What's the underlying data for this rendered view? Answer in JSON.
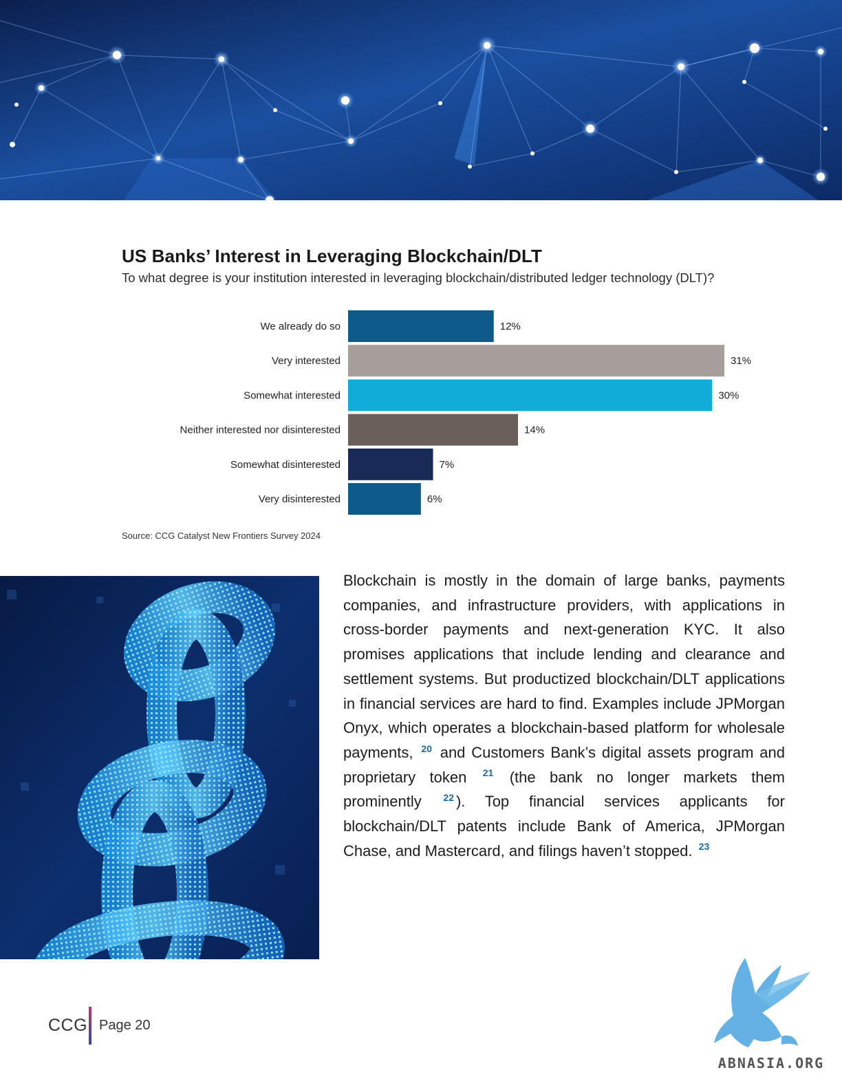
{
  "chart_data": {
    "type": "bar",
    "orientation": "horizontal",
    "title": "US Banks’ Interest in Leveraging Blockchain/DLT",
    "subtitle": "To what degree is your institution interested in leveraging blockchain/distributed ledger technology (DLT)?",
    "categories": [
      "We already do so",
      "Very interested",
      "Somewhat interested",
      "Neither interested nor disinterested",
      "Somewhat disinterested",
      "Very disinterested"
    ],
    "values": [
      12,
      31,
      30,
      14,
      7,
      6
    ],
    "data_labels": [
      "12%",
      "31%",
      "30%",
      "14%",
      "7%",
      "6%"
    ],
    "colors": [
      "#0e5a8a",
      "#a59e9b",
      "#11acd8",
      "#6b5f59",
      "#1a2a57",
      "#0e5a8a"
    ],
    "xlim": [
      0,
      31
    ],
    "grid": false,
    "legend": "none",
    "source": "Source: CCG Catalyst New Frontiers Survey 2024"
  },
  "body": {
    "seg1": "Blockchain is mostly in the domain of large banks, payments companies, and infrastructure providers, with applications in cross-border payments and next-generation KYC. It also promises applications that include lending and clearance and settlement systems. But productized blockchain/DLT applications in financial services are hard to find. Examples include JPMorgan Onyx, which operates a blockchain-based platform for wholesale payments,",
    "ref1": "20",
    "seg2": "and Customers Bank’s digital assets program and proprietary token",
    "ref2": "21",
    "seg3": "(the bank no longer markets them prominently",
    "ref3": "22",
    "seg4": "). Top financial services applicants for blockchain/DLT patents include Bank of America, JPMorgan Chase, and Mastercard, and filings haven’t stopped.",
    "ref4": "23"
  },
  "footer": {
    "brand": "CCG",
    "page": "Page 20"
  },
  "watermark": {
    "text": "ABNASIA.ORG"
  },
  "images": {
    "hero": "blue network nodes background",
    "photo": "glowing blue digital chain links"
  }
}
